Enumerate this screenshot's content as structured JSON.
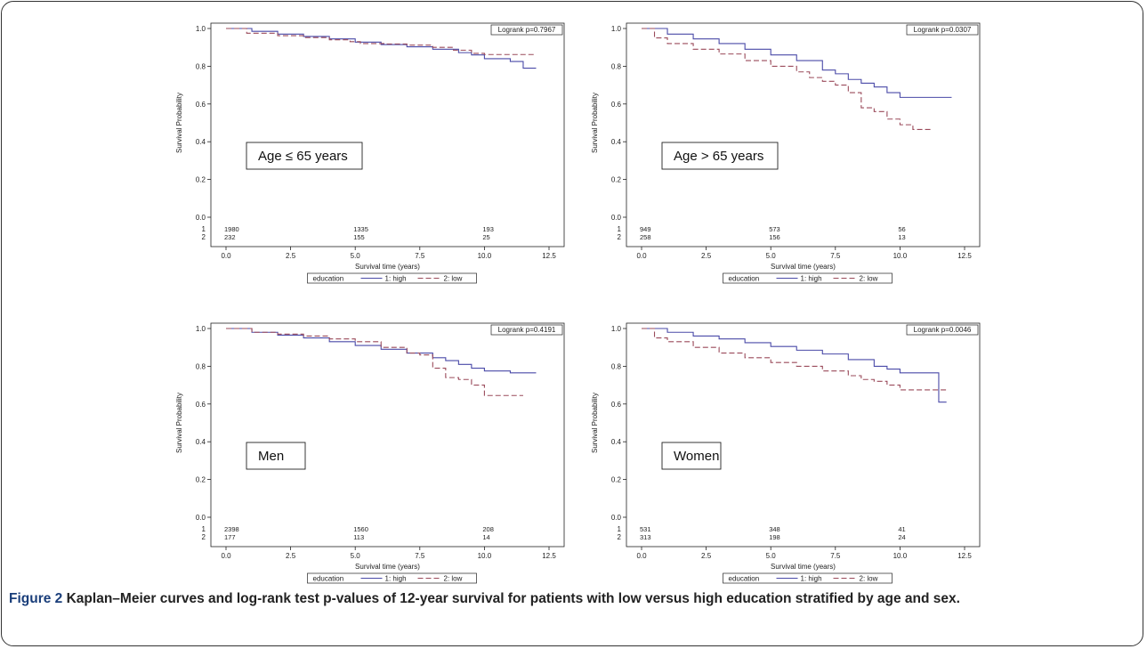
{
  "figure": {
    "label": "Figure 2",
    "caption": "Kaplan–Meier curves and log-rank test p-values of 12-year survival for patients with low versus high education stratified by age and sex."
  },
  "colors": {
    "high": "#4a4aa8",
    "low": "#9a4a5a",
    "axis": "#222222"
  },
  "chart_data": [
    {
      "type": "line",
      "subtitle": "Age ≤ 65 years",
      "annotation": "Logrank p=0.7967",
      "xlabel": "Survival time (years)",
      "ylabel": "Survival Probability",
      "xlim": [
        0,
        12.5
      ],
      "ylim": [
        0,
        1
      ],
      "xticks": [
        "0.0",
        "2.5",
        "5.0",
        "7.5",
        "10.0",
        "12.5"
      ],
      "yticks": [
        "0.0",
        "0.2",
        "0.4",
        "0.6",
        "0.8",
        "1.0"
      ],
      "legend": {
        "title": "education",
        "placement": "bottom"
      },
      "risk_table": {
        "times": [
          0,
          5,
          10
        ],
        "rows": [
          {
            "label": "1",
            "values": [
              "1980",
              "1335",
              "193"
            ]
          },
          {
            "label": "2",
            "values": [
              "232",
              "155",
              "25"
            ]
          }
        ]
      },
      "series": [
        {
          "name": "1: high",
          "x": [
            0,
            1,
            2,
            3,
            4,
            5,
            6,
            7,
            8,
            9,
            9.5,
            10,
            10.5,
            11,
            11.5,
            12
          ],
          "y": [
            1,
            0.985,
            0.97,
            0.958,
            0.945,
            0.928,
            0.915,
            0.903,
            0.89,
            0.872,
            0.86,
            0.84,
            0.84,
            0.825,
            0.79,
            0.79
          ]
        },
        {
          "name": "2: low",
          "x": [
            0,
            0.8,
            2,
            3,
            4,
            4.8,
            5.2,
            6.2,
            7,
            8,
            8.8,
            9.5,
            10,
            11,
            12
          ],
          "y": [
            1,
            0.975,
            0.962,
            0.952,
            0.94,
            0.93,
            0.92,
            0.918,
            0.912,
            0.9,
            0.885,
            0.868,
            0.862,
            0.862,
            0.862
          ]
        }
      ]
    },
    {
      "type": "line",
      "subtitle": "Age > 65 years",
      "annotation": "Logrank p=0.0307",
      "xlabel": "Survival time (years)",
      "ylabel": "Survival Probability",
      "xlim": [
        0,
        12.5
      ],
      "ylim": [
        0,
        1
      ],
      "xticks": [
        "0.0",
        "2.5",
        "5.0",
        "7.5",
        "10.0",
        "12.5"
      ],
      "yticks": [
        "0.0",
        "0.2",
        "0.4",
        "0.6",
        "0.8",
        "1.0"
      ],
      "legend": {
        "title": "education",
        "placement": "bottom"
      },
      "risk_table": {
        "times": [
          0,
          5,
          10
        ],
        "rows": [
          {
            "label": "1",
            "values": [
              "949",
              "573",
              "56"
            ]
          },
          {
            "label": "2",
            "values": [
              "258",
              "156",
              "13"
            ]
          }
        ]
      },
      "series": [
        {
          "name": "1: high",
          "x": [
            0,
            1,
            2,
            3,
            4,
            5,
            6,
            7,
            7.5,
            8,
            8.5,
            9,
            9.5,
            10,
            11,
            12
          ],
          "y": [
            1,
            0.97,
            0.945,
            0.92,
            0.89,
            0.86,
            0.83,
            0.78,
            0.76,
            0.73,
            0.71,
            0.69,
            0.66,
            0.635,
            0.635,
            0.635
          ]
        },
        {
          "name": "2: low",
          "x": [
            0,
            0.5,
            1,
            2,
            3,
            4,
            5,
            6,
            6.5,
            7,
            7.5,
            8,
            8.5,
            9,
            9.5,
            10,
            10.5,
            11.2
          ],
          "y": [
            1,
            0.95,
            0.92,
            0.89,
            0.865,
            0.83,
            0.8,
            0.77,
            0.74,
            0.72,
            0.7,
            0.66,
            0.58,
            0.56,
            0.52,
            0.49,
            0.465,
            0.465
          ]
        }
      ]
    },
    {
      "type": "line",
      "subtitle": "Men",
      "annotation": "Logrank p=0.4191",
      "xlabel": "Survival time (years)",
      "ylabel": "Survival Probability",
      "xlim": [
        0,
        12.5
      ],
      "ylim": [
        0,
        1
      ],
      "xticks": [
        "0.0",
        "2.5",
        "5.0",
        "7.5",
        "10.0",
        "12.5"
      ],
      "yticks": [
        "0.0",
        "0.2",
        "0.4",
        "0.6",
        "0.8",
        "1.0"
      ],
      "legend": {
        "title": "education",
        "placement": "bottom"
      },
      "risk_table": {
        "times": [
          0,
          5,
          10
        ],
        "rows": [
          {
            "label": "1",
            "values": [
              "2398",
              "1560",
              "208"
            ]
          },
          {
            "label": "2",
            "values": [
              "177",
              "113",
              "14"
            ]
          }
        ]
      },
      "series": [
        {
          "name": "1: high",
          "x": [
            0,
            1,
            2,
            3,
            4,
            5,
            6,
            7,
            8,
            8.5,
            9,
            9.5,
            10,
            11,
            12
          ],
          "y": [
            1,
            0.98,
            0.965,
            0.95,
            0.93,
            0.91,
            0.89,
            0.87,
            0.845,
            0.83,
            0.81,
            0.79,
            0.775,
            0.765,
            0.765
          ]
        },
        {
          "name": "2: low",
          "x": [
            0,
            1,
            2,
            3,
            4,
            5,
            6,
            7,
            7.5,
            8,
            8.5,
            9,
            9.5,
            10,
            11.5
          ],
          "y": [
            1,
            0.98,
            0.97,
            0.96,
            0.945,
            0.93,
            0.9,
            0.87,
            0.86,
            0.79,
            0.74,
            0.73,
            0.7,
            0.645,
            0.645
          ]
        }
      ]
    },
    {
      "type": "line",
      "subtitle": "Women",
      "annotation": "Logrank p=0.0046",
      "xlabel": "Survival time (years)",
      "ylabel": "Survival Probability",
      "xlim": [
        0,
        12.5
      ],
      "ylim": [
        0,
        1
      ],
      "xticks": [
        "0.0",
        "2.5",
        "5.0",
        "7.5",
        "10.0",
        "12.5"
      ],
      "yticks": [
        "0.0",
        "0.2",
        "0.4",
        "0.6",
        "0.8",
        "1.0"
      ],
      "legend": {
        "title": "education",
        "placement": "bottom"
      },
      "risk_table": {
        "times": [
          0,
          5,
          10
        ],
        "rows": [
          {
            "label": "1",
            "values": [
              "531",
              "348",
              "41"
            ]
          },
          {
            "label": "2",
            "values": [
              "313",
              "198",
              "24"
            ]
          }
        ]
      },
      "series": [
        {
          "name": "1: high",
          "x": [
            0,
            1,
            2,
            3,
            4,
            5,
            6,
            7,
            8,
            9,
            9.5,
            10,
            11,
            11.5,
            11.5,
            11.8
          ],
          "y": [
            1,
            0.98,
            0.96,
            0.945,
            0.925,
            0.905,
            0.885,
            0.865,
            0.835,
            0.8,
            0.785,
            0.765,
            0.765,
            0.765,
            0.61,
            0.61
          ]
        },
        {
          "name": "2: low",
          "x": [
            0,
            0.5,
            1,
            2,
            3,
            4,
            5,
            6,
            7,
            8,
            8.5,
            9,
            9.5,
            10,
            11,
            11.8
          ],
          "y": [
            1,
            0.95,
            0.93,
            0.9,
            0.87,
            0.845,
            0.82,
            0.8,
            0.775,
            0.75,
            0.73,
            0.72,
            0.7,
            0.675,
            0.675,
            0.675
          ]
        }
      ]
    }
  ]
}
